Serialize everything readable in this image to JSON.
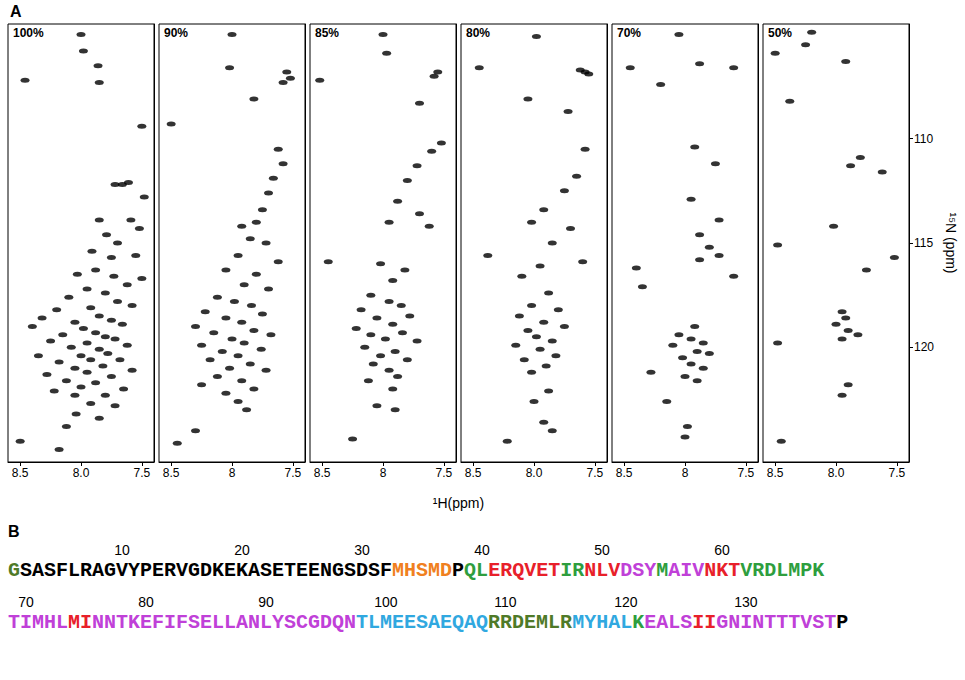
{
  "chart_data": [
    {
      "type": "scatter",
      "title": "100%",
      "color": "#000000",
      "marker": "ellipse",
      "tick_labels": "x",
      "xlim": [
        8.6,
        7.4
      ],
      "ylim": [
        125.5,
        104.5
      ],
      "xticks": [
        8.5,
        {
          "value": 8,
          "label": "8.0"
        },
        7.5
      ],
      "x": [
        8.0,
        7.98,
        8.46,
        7.86,
        7.85,
        7.5,
        7.72,
        7.66,
        7.61,
        7.48,
        7.85,
        7.59,
        7.52,
        7.79,
        7.7,
        7.91,
        7.75,
        7.55,
        8.03,
        7.88,
        7.73,
        7.5,
        7.62,
        7.95,
        7.8,
        8.1,
        7.7,
        7.58,
        8.2,
        7.92,
        7.85,
        8.32,
        7.75,
        8.05,
        7.66,
        8.4,
        7.98,
        7.88,
        8.15,
        7.8,
        7.72,
        8.25,
        7.95,
        7.62,
        8.08,
        7.85,
        7.78,
        8.0,
        8.35,
        7.92,
        7.68,
        8.18,
        7.82,
        8.05,
        7.58,
        7.95,
        8.28,
        7.75,
        8.12,
        7.88,
        8.0,
        7.65,
        8.22,
        7.8,
        8.05,
        7.92,
        7.72,
        8.04,
        7.85,
        8.12,
        8.5,
        8.18
      ],
      "values": [
        105.0,
        105.8,
        107.2,
        106.5,
        107.3,
        109.4,
        112.2,
        112.2,
        112.1,
        112.8,
        113.9,
        113.9,
        114.3,
        114.6,
        115.0,
        115.4,
        115.7,
        115.6,
        116.5,
        116.3,
        116.6,
        116.7,
        117.0,
        117.2,
        117.4,
        117.6,
        117.8,
        118.0,
        118.2,
        118.1,
        118.5,
        118.6,
        118.7,
        118.8,
        118.9,
        119.0,
        119.1,
        119.3,
        119.4,
        119.5,
        119.6,
        119.7,
        119.8,
        119.9,
        120.0,
        120.1,
        120.3,
        120.4,
        120.4,
        120.6,
        120.6,
        120.7,
        120.9,
        121.0,
        121.1,
        121.2,
        121.3,
        121.4,
        121.6,
        121.7,
        121.9,
        122.0,
        122.1,
        122.3,
        122.3,
        122.7,
        122.8,
        123.2,
        123.4,
        123.8,
        124.5,
        124.9
      ]
    },
    {
      "type": "scatter",
      "title": "90%",
      "color": "#000000",
      "marker": "ellipse",
      "tick_labels": "x",
      "xlim": [
        8.6,
        7.4
      ],
      "ylim": [
        125.5,
        104.5
      ],
      "xticks": [
        8.5,
        8,
        7.5
      ],
      "x": [
        8.0,
        8.02,
        7.55,
        7.52,
        7.58,
        7.82,
        8.5,
        7.62,
        7.58,
        7.66,
        7.7,
        7.75,
        7.8,
        7.92,
        7.85,
        7.72,
        7.95,
        7.62,
        8.05,
        7.8,
        7.9,
        7.7,
        8.12,
        7.98,
        7.84,
        8.22,
        7.75,
        8.05,
        7.92,
        8.3,
        7.82,
        8.15,
        7.68,
        8.0,
        7.9,
        8.25,
        7.76,
        8.08,
        7.95,
        8.18,
        7.85,
        8.02,
        7.72,
        8.12,
        7.92,
        8.25,
        7.82,
        8.05,
        7.95,
        7.88,
        8.3,
        8.45
      ],
      "values": [
        105.0,
        106.6,
        106.8,
        107.1,
        107.3,
        108.1,
        109.3,
        110.5,
        111.2,
        111.9,
        112.6,
        113.4,
        114.0,
        114.2,
        114.8,
        115.0,
        115.6,
        115.9,
        116.3,
        116.5,
        117.0,
        117.2,
        117.6,
        117.8,
        118.0,
        118.3,
        118.4,
        118.6,
        118.8,
        119.0,
        119.2,
        119.3,
        119.4,
        119.6,
        119.8,
        119.9,
        120.1,
        120.2,
        120.4,
        120.6,
        120.8,
        121.0,
        121.1,
        121.4,
        121.6,
        121.8,
        122.0,
        122.2,
        122.6,
        123.0,
        124.0,
        124.6
      ]
    },
    {
      "type": "scatter",
      "title": "85%",
      "color": "#000000",
      "marker": "ellipse",
      "tick_labels": "x",
      "xlim": [
        8.6,
        7.4
      ],
      "ylim": [
        125.5,
        104.5
      ],
      "xticks": [
        8.5,
        8,
        7.5
      ],
      "x": [
        8.0,
        7.97,
        7.55,
        7.58,
        8.52,
        7.7,
        7.52,
        7.6,
        7.72,
        7.8,
        7.88,
        7.7,
        7.95,
        7.62,
        8.45,
        8.02,
        7.82,
        7.92,
        8.1,
        7.95,
        7.85,
        8.18,
        7.78,
        8.05,
        7.92,
        8.22,
        7.84,
        8.1,
        7.98,
        7.72,
        8.15,
        7.9,
        8.02,
        7.8,
        8.08,
        7.95,
        7.88,
        8.12,
        7.92,
        8.05,
        7.9,
        8.25
      ],
      "values": [
        105.0,
        105.9,
        106.8,
        107.0,
        107.2,
        108.3,
        110.2,
        110.6,
        111.3,
        112.0,
        113.0,
        113.6,
        114.0,
        114.2,
        115.9,
        116.0,
        116.3,
        116.8,
        117.5,
        117.8,
        118.0,
        118.2,
        118.5,
        118.6,
        118.9,
        119.1,
        119.3,
        119.4,
        119.6,
        119.7,
        120.0,
        120.2,
        120.4,
        120.6,
        120.8,
        121.1,
        121.4,
        121.6,
        122.0,
        122.8,
        123.0,
        124.4
      ]
    },
    {
      "type": "scatter",
      "title": "80%",
      "color": "#000000",
      "marker": "ellipse",
      "tick_labels": "x",
      "xlim": [
        8.6,
        7.4
      ],
      "ylim": [
        125.5,
        104.5
      ],
      "xticks": [
        8.5,
        {
          "value": 8,
          "label": "8.0"
        },
        7.5
      ],
      "x": [
        7.98,
        8.45,
        7.62,
        7.58,
        7.55,
        8.05,
        7.72,
        7.58,
        7.65,
        7.75,
        7.92,
        8.02,
        7.7,
        7.85,
        8.38,
        7.6,
        7.95,
        8.1,
        7.88,
        8.02,
        7.8,
        8.12,
        7.92,
        7.75,
        8.05,
        7.98,
        7.85,
        8.15,
        7.95,
        7.82,
        8.08,
        7.9,
        8.02,
        7.88,
        8.0,
        7.92,
        7.85,
        8.22
      ],
      "values": [
        105.1,
        106.6,
        106.7,
        106.8,
        106.9,
        108.1,
        108.7,
        110.5,
        111.8,
        112.5,
        113.4,
        114.0,
        114.3,
        115.0,
        115.6,
        115.9,
        116.1,
        116.6,
        117.4,
        118.0,
        118.2,
        118.5,
        118.8,
        119.0,
        119.2,
        119.5,
        119.7,
        119.9,
        120.1,
        120.4,
        120.6,
        120.9,
        121.2,
        122.1,
        122.6,
        123.6,
        124.0,
        124.5
      ]
    },
    {
      "type": "scatter",
      "title": "70%",
      "color": "#000000",
      "marker": "ellipse",
      "tick_labels": "x",
      "xlim": [
        8.6,
        7.4
      ],
      "ylim": [
        125.5,
        104.5
      ],
      "xticks": [
        8.5,
        8,
        7.5
      ],
      "x": [
        8.05,
        8.45,
        7.88,
        7.6,
        8.2,
        7.92,
        7.75,
        7.95,
        7.72,
        7.88,
        7.8,
        7.72,
        7.88,
        8.4,
        7.6,
        8.35,
        7.92,
        8.05,
        7.95,
        7.85,
        8.1,
        7.9,
        7.8,
        8.02,
        7.95,
        7.85,
        8.28,
        8.0,
        7.9,
        8.15,
        7.98,
        8.0
      ],
      "values": [
        105.0,
        106.6,
        106.4,
        106.6,
        107.4,
        110.4,
        111.2,
        112.9,
        113.9,
        114.6,
        115.2,
        115.6,
        115.8,
        116.2,
        116.6,
        117.1,
        119.0,
        119.4,
        119.6,
        119.8,
        119.9,
        120.2,
        120.3,
        120.5,
        120.8,
        121.0,
        121.2,
        121.4,
        121.6,
        122.6,
        123.8,
        124.3
      ]
    },
    {
      "type": "scatter",
      "title": "50%",
      "color": "#000000",
      "marker": "ellipse",
      "xlim": [
        8.6,
        7.4
      ],
      "ylim": [
        125.5,
        104.5
      ],
      "xticks": [
        8.5,
        {
          "value": 8,
          "label": "8.0"
        },
        7.5
      ],
      "yticks": [
        110,
        115,
        120
      ],
      "x": [
        8.2,
        8.5,
        8.25,
        7.92,
        8.38,
        7.8,
        7.88,
        7.62,
        8.02,
        8.48,
        7.52,
        7.75,
        7.95,
        7.92,
        8.0,
        7.9,
        7.82,
        7.95,
        8.48,
        7.9,
        7.95,
        8.45
      ],
      "values": [
        104.9,
        105.9,
        105.5,
        106.3,
        108.2,
        110.9,
        111.3,
        111.6,
        114.2,
        115.1,
        115.7,
        116.3,
        118.3,
        118.6,
        118.9,
        119.2,
        119.4,
        119.6,
        119.8,
        121.8,
        122.3,
        124.5
      ]
    }
  ],
  "figure": {
    "label": "A",
    "xlabel": "¹H(ppm)",
    "ylabel": "¹⁵N (ppm)"
  },
  "sequence": {
    "label": "B",
    "lines": [
      [
        {
          "text": "G",
          "color": "#4f7a28"
        },
        {
          "text": "SASFLRAGVYPERVGDKEKASETEENGSDSF",
          "color": "#000000"
        },
        {
          "text": "MHSMD",
          "color": "#f08020"
        },
        {
          "text": "P",
          "color": "#000000"
        },
        {
          "text": "QL",
          "color": "#2e9e3e"
        },
        {
          "text": "ERQVET",
          "color": "#e8202a"
        },
        {
          "text": "IR",
          "color": "#2e9e3e"
        },
        {
          "text": "NLV",
          "color": "#e8202a"
        },
        {
          "text": "DSY",
          "color": "#c040d8"
        },
        {
          "text": "M",
          "color": "#2e9e3e"
        },
        {
          "text": "AIV",
          "color": "#c040d8"
        },
        {
          "text": "NKT",
          "color": "#e8202a"
        },
        {
          "text": "VRDLMPK",
          "color": "#2e9e3e"
        }
      ],
      [
        {
          "text": "TIMHL",
          "color": "#c040d8"
        },
        {
          "text": "MI",
          "color": "#e8202a"
        },
        {
          "text": "NNTKEFIFSELLANLYSCGDQN",
          "color": "#c040d8"
        },
        {
          "text": "TLMEESAEQAQ",
          "color": "#30a8e0"
        },
        {
          "text": "RRDEMLR",
          "color": "#4f7a28"
        },
        {
          "text": "MYHAL",
          "color": "#30a8e0"
        },
        {
          "text": "K",
          "color": "#2e9e3e"
        },
        {
          "text": "EALS",
          "color": "#c040d8"
        },
        {
          "text": "II",
          "color": "#e8202a"
        },
        {
          "text": "GNINTTTVST",
          "color": "#c040d8"
        },
        {
          "text": "P",
          "color": "#000000"
        }
      ]
    ],
    "numbers": [
      10,
      20,
      30,
      40,
      50,
      60,
      70,
      80,
      90,
      100,
      110,
      120,
      130
    ]
  }
}
